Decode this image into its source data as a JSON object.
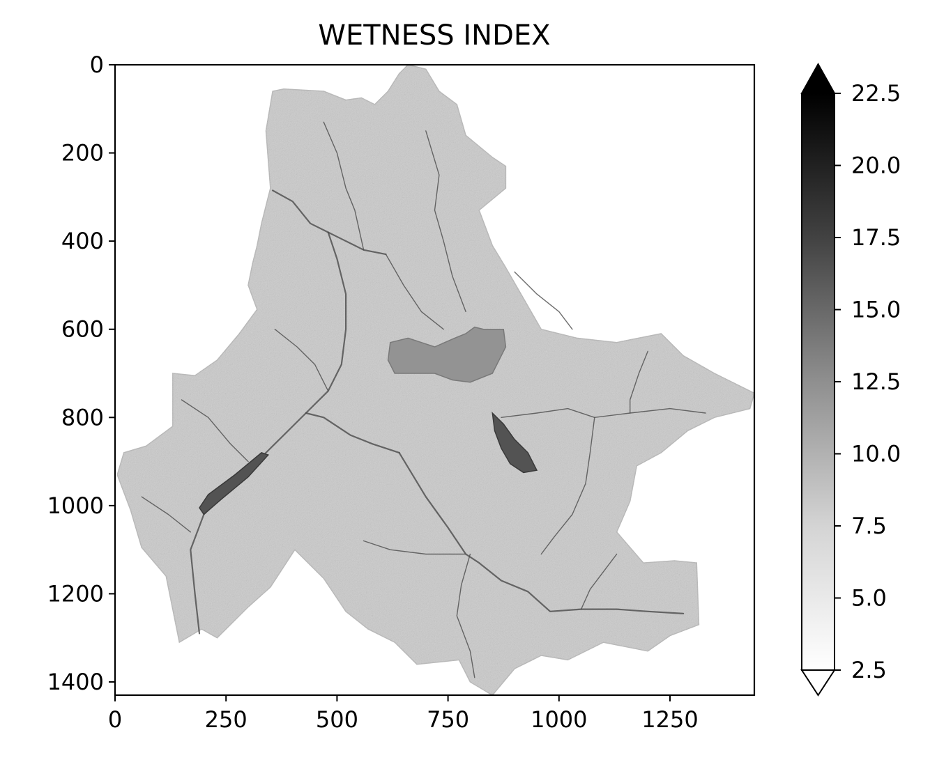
{
  "chart_data": {
    "type": "heatmap",
    "title": "WETNESS INDEX",
    "xlabel": "",
    "ylabel": "",
    "x_ticks": [
      0,
      250,
      500,
      750,
      1000,
      1250
    ],
    "y_ticks": [
      0,
      200,
      400,
      600,
      800,
      1000,
      1200,
      1400
    ],
    "xlim": [
      0,
      1440
    ],
    "ylim": [
      1430,
      0
    ],
    "y_inverted": true,
    "grid": false,
    "colormap": "gray_r",
    "colorbar": {
      "min": 2.5,
      "max": 22.5,
      "ticks": [
        2.5,
        5.0,
        7.5,
        10.0,
        12.5,
        15.0,
        17.5,
        20.0,
        22.5
      ],
      "tick_labels": [
        "2.5",
        "5.0",
        "7.5",
        "10.0",
        "12.5",
        "15.0",
        "17.5",
        "20.0",
        "22.5"
      ],
      "extend": "both",
      "low_color": "#ffffff",
      "high_color": "#000000"
    },
    "no_data_color": "#ffffff",
    "catchment_outline": [
      [
        350,
        280
      ],
      [
        340,
        150
      ],
      [
        355,
        60
      ],
      [
        380,
        55
      ],
      [
        470,
        60
      ],
      [
        520,
        80
      ],
      [
        555,
        75
      ],
      [
        585,
        90
      ],
      [
        615,
        60
      ],
      [
        640,
        20
      ],
      [
        660,
        0
      ],
      [
        700,
        10
      ],
      [
        730,
        60
      ],
      [
        770,
        90
      ],
      [
        790,
        160
      ],
      [
        850,
        210
      ],
      [
        880,
        230
      ],
      [
        880,
        280
      ],
      [
        820,
        330
      ],
      [
        850,
        410
      ],
      [
        880,
        460
      ],
      [
        960,
        600
      ],
      [
        1040,
        620
      ],
      [
        1130,
        630
      ],
      [
        1230,
        610
      ],
      [
        1280,
        660
      ],
      [
        1350,
        700
      ],
      [
        1440,
        745
      ],
      [
        1430,
        780
      ],
      [
        1350,
        800
      ],
      [
        1290,
        830
      ],
      [
        1230,
        880
      ],
      [
        1175,
        910
      ],
      [
        1160,
        990
      ],
      [
        1130,
        1060
      ],
      [
        1190,
        1130
      ],
      [
        1260,
        1125
      ],
      [
        1310,
        1130
      ],
      [
        1315,
        1270
      ],
      [
        1250,
        1295
      ],
      [
        1200,
        1330
      ],
      [
        1100,
        1310
      ],
      [
        1020,
        1350
      ],
      [
        960,
        1340
      ],
      [
        900,
        1370
      ],
      [
        850,
        1430
      ],
      [
        800,
        1400
      ],
      [
        775,
        1350
      ],
      [
        680,
        1360
      ],
      [
        630,
        1310
      ],
      [
        570,
        1280
      ],
      [
        520,
        1240
      ],
      [
        470,
        1165
      ],
      [
        405,
        1100
      ],
      [
        350,
        1185
      ],
      [
        300,
        1230
      ],
      [
        230,
        1300
      ],
      [
        195,
        1280
      ],
      [
        145,
        1310
      ],
      [
        115,
        1160
      ],
      [
        60,
        1095
      ],
      [
        35,
        1010
      ],
      [
        5,
        930
      ],
      [
        20,
        880
      ],
      [
        70,
        865
      ],
      [
        130,
        820
      ],
      [
        130,
        700
      ],
      [
        180,
        705
      ],
      [
        230,
        670
      ],
      [
        280,
        610
      ],
      [
        320,
        555
      ],
      [
        300,
        500
      ],
      [
        310,
        450
      ],
      [
        320,
        410
      ],
      [
        330,
        360
      ]
    ],
    "flat_areas": [
      {
        "label": "",
        "shade_value": 11,
        "outline": [
          [
            620,
            630
          ],
          [
            660,
            620
          ],
          [
            720,
            640
          ],
          [
            765,
            620
          ],
          [
            790,
            610
          ],
          [
            810,
            595
          ],
          [
            830,
            600
          ],
          [
            875,
            600
          ],
          [
            880,
            640
          ],
          [
            850,
            700
          ],
          [
            800,
            720
          ],
          [
            760,
            715
          ],
          [
            720,
            700
          ],
          [
            680,
            700
          ],
          [
            630,
            700
          ],
          [
            615,
            670
          ]
        ]
      },
      {
        "label": "",
        "shade_value": 16,
        "outline": [
          [
            850,
            790
          ],
          [
            875,
            815
          ],
          [
            900,
            850
          ],
          [
            930,
            880
          ],
          [
            950,
            920
          ],
          [
            920,
            925
          ],
          [
            890,
            905
          ],
          [
            870,
            870
          ],
          [
            855,
            830
          ]
        ]
      },
      {
        "label": "",
        "shade_value": 16,
        "outline": [
          [
            190,
            1005
          ],
          [
            210,
            975
          ],
          [
            270,
            930
          ],
          [
            330,
            880
          ],
          [
            345,
            885
          ],
          [
            300,
            935
          ],
          [
            240,
            985
          ],
          [
            200,
            1020
          ]
        ]
      }
    ],
    "drainage_lines": [
      [
        [
          355,
          285
        ],
        [
          400,
          310
        ],
        [
          440,
          360
        ],
        [
          480,
          380
        ],
        [
          500,
          390
        ],
        [
          560,
          420
        ],
        [
          610,
          430
        ]
      ],
      [
        [
          480,
          380
        ],
        [
          500,
          440
        ],
        [
          520,
          520
        ],
        [
          520,
          600
        ],
        [
          510,
          680
        ],
        [
          480,
          740
        ],
        [
          430,
          790
        ],
        [
          400,
          820
        ],
        [
          340,
          880
        ],
        [
          270,
          950
        ],
        [
          200,
          1020
        ],
        [
          170,
          1100
        ],
        [
          180,
          1200
        ],
        [
          190,
          1290
        ]
      ],
      [
        [
          430,
          790
        ],
        [
          470,
          800
        ],
        [
          530,
          840
        ],
        [
          580,
          860
        ],
        [
          640,
          880
        ]
      ],
      [
        [
          640,
          880
        ],
        [
          700,
          980
        ],
        [
          750,
          1050
        ],
        [
          790,
          1110
        ],
        [
          820,
          1130
        ],
        [
          870,
          1170
        ],
        [
          930,
          1195
        ],
        [
          980,
          1240
        ],
        [
          1050,
          1235
        ],
        [
          1130,
          1235
        ],
        [
          1200,
          1240
        ],
        [
          1280,
          1245
        ]
      ],
      [
        [
          1050,
          1235
        ],
        [
          1070,
          1190
        ],
        [
          1100,
          1150
        ],
        [
          1130,
          1110
        ]
      ],
      [
        [
          870,
          800
        ],
        [
          950,
          790
        ],
        [
          1020,
          780
        ],
        [
          1080,
          800
        ],
        [
          1160,
          790
        ],
        [
          1250,
          780
        ],
        [
          1330,
          790
        ]
      ],
      [
        [
          1080,
          800
        ],
        [
          1070,
          880
        ],
        [
          1060,
          950
        ],
        [
          1030,
          1020
        ],
        [
          990,
          1070
        ],
        [
          960,
          1110
        ]
      ],
      [
        [
          800,
          1110
        ],
        [
          780,
          1180
        ],
        [
          770,
          1250
        ],
        [
          800,
          1330
        ],
        [
          810,
          1390
        ]
      ],
      [
        [
          610,
          430
        ],
        [
          650,
          500
        ],
        [
          690,
          560
        ],
        [
          740,
          600
        ]
      ],
      [
        [
          700,
          150
        ],
        [
          730,
          250
        ],
        [
          720,
          330
        ],
        [
          740,
          400
        ],
        [
          760,
          480
        ],
        [
          790,
          560
        ]
      ],
      [
        [
          470,
          130
        ],
        [
          500,
          200
        ],
        [
          520,
          280
        ],
        [
          540,
          330
        ],
        [
          560,
          420
        ]
      ],
      [
        [
          150,
          760
        ],
        [
          210,
          800
        ],
        [
          260,
          860
        ],
        [
          300,
          900
        ]
      ],
      [
        [
          60,
          980
        ],
        [
          120,
          1020
        ],
        [
          170,
          1060
        ]
      ],
      [
        [
          560,
          1080
        ],
        [
          620,
          1100
        ],
        [
          700,
          1110
        ],
        [
          790,
          1110
        ]
      ],
      [
        [
          900,
          470
        ],
        [
          950,
          520
        ],
        [
          1000,
          560
        ],
        [
          1030,
          600
        ]
      ],
      [
        [
          1200,
          650
        ],
        [
          1180,
          700
        ],
        [
          1160,
          760
        ],
        [
          1160,
          790
        ]
      ],
      [
        [
          360,
          600
        ],
        [
          410,
          640
        ],
        [
          450,
          680
        ],
        [
          480,
          740
        ]
      ]
    ]
  }
}
